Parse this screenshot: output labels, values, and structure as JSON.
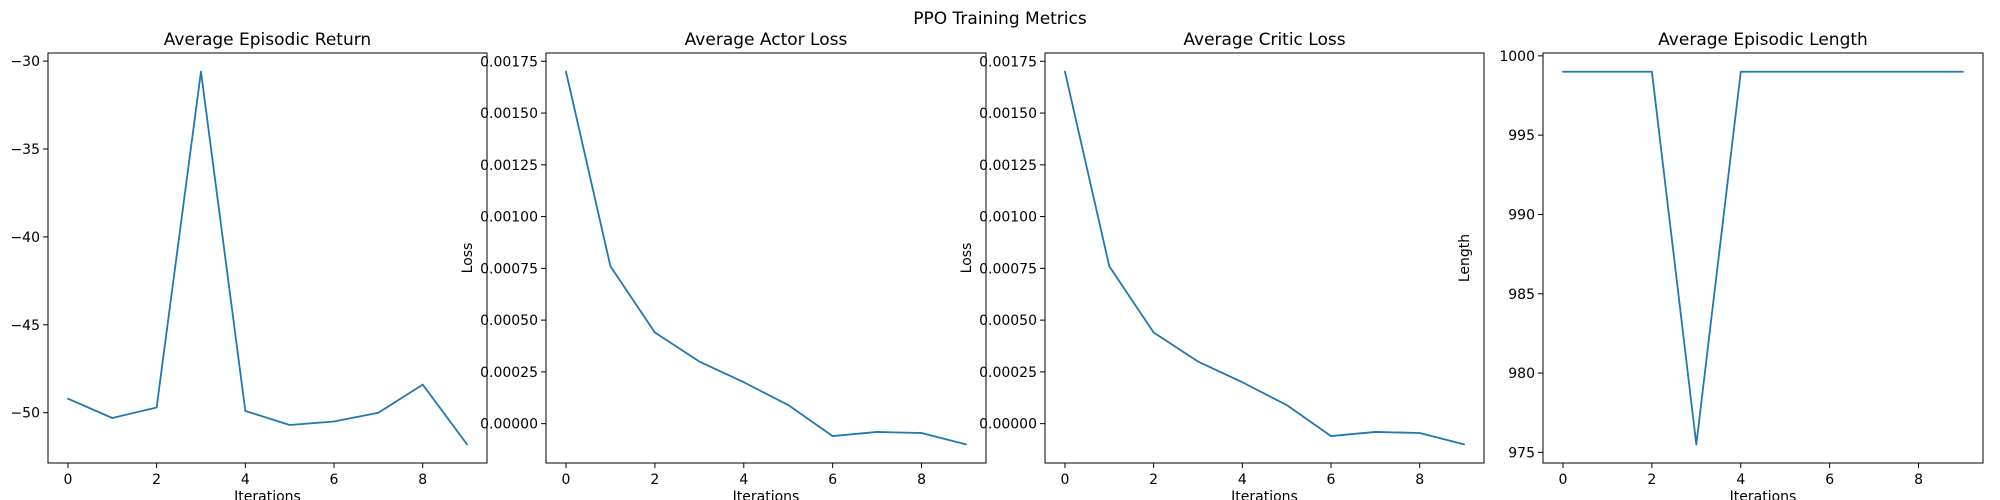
{
  "figure": {
    "suptitle": "PPO Training Metrics"
  },
  "line_color": "#1f77b4",
  "chart_data": [
    {
      "type": "line",
      "title": "Average Episodic Return",
      "xlabel": "Iterations",
      "ylabel": "",
      "x": [
        0,
        1,
        2,
        3,
        4,
        5,
        6,
        7,
        8,
        9
      ],
      "series": [
        {
          "values": [
            -49.2,
            -50.3,
            -49.7,
            -30.6,
            -49.9,
            -50.7,
            -50.5,
            -50.0,
            -48.4,
            -51.8
          ]
        }
      ],
      "xlim": [
        -0.45,
        9.45
      ],
      "ylim": [
        -52.86,
        -29.54
      ],
      "xticks": [
        0,
        2,
        4,
        6,
        8
      ],
      "xtick_labels": [
        "0",
        "2",
        "4",
        "6",
        "8"
      ],
      "yticks": [
        -50,
        -45,
        -40,
        -35,
        -30
      ],
      "ytick_labels": [
        "−50",
        "−45",
        "−40",
        "−35",
        "−30"
      ],
      "grid": false
    },
    {
      "type": "line",
      "title": "Average Actor Loss",
      "xlabel": "Iterations",
      "ylabel": "Loss",
      "x": [
        0,
        1,
        2,
        3,
        4,
        5,
        6,
        7,
        8,
        9
      ],
      "series": [
        {
          "values": [
            0.0017,
            0.00076,
            0.00044,
            0.0003,
            0.0002,
            9e-05,
            -6e-05,
            -4e-05,
            -4.5e-05,
            -0.0001
          ]
        }
      ],
      "xlim": [
        -0.45,
        9.45
      ],
      "ylim": [
        -0.00019,
        0.00179
      ],
      "xticks": [
        0,
        2,
        4,
        6,
        8
      ],
      "xtick_labels": [
        "0",
        "2",
        "4",
        "6",
        "8"
      ],
      "yticks": [
        0,
        0.00025,
        0.0005,
        0.00075,
        0.001,
        0.00125,
        0.0015,
        0.00175
      ],
      "ytick_labels": [
        "0.00000",
        "0.00025",
        "0.00050",
        "0.00075",
        "0.00100",
        "0.00125",
        "0.00150",
        "0.00175"
      ],
      "grid": false
    },
    {
      "type": "line",
      "title": "Average Critic Loss",
      "xlabel": "Iterations",
      "ylabel": "Loss",
      "x": [
        0,
        1,
        2,
        3,
        4,
        5,
        6,
        7,
        8,
        9
      ],
      "series": [
        {
          "values": [
            0.0017,
            0.00076,
            0.00044,
            0.0003,
            0.0002,
            9e-05,
            -6e-05,
            -4e-05,
            -4.5e-05,
            -0.0001
          ]
        }
      ],
      "xlim": [
        -0.45,
        9.45
      ],
      "ylim": [
        -0.00019,
        0.00179
      ],
      "xticks": [
        0,
        2,
        4,
        6,
        8
      ],
      "xtick_labels": [
        "0",
        "2",
        "4",
        "6",
        "8"
      ],
      "yticks": [
        0,
        0.00025,
        0.0005,
        0.00075,
        0.001,
        0.00125,
        0.0015,
        0.00175
      ],
      "ytick_labels": [
        "0.00000",
        "0.00025",
        "0.00050",
        "0.00075",
        "0.00100",
        "0.00125",
        "0.00150",
        "0.00175"
      ],
      "grid": false
    },
    {
      "type": "line",
      "title": "Average Episodic Length",
      "xlabel": "Iterations",
      "ylabel": "Length",
      "x": [
        0,
        1,
        2,
        3,
        4,
        5,
        6,
        7,
        8,
        9
      ],
      "series": [
        {
          "values": [
            999,
            999,
            999,
            975.5,
            999,
            999,
            999,
            999,
            999,
            999
          ]
        }
      ],
      "xlim": [
        -0.45,
        9.45
      ],
      "ylim": [
        974.33,
        1000.18
      ],
      "xticks": [
        0,
        2,
        4,
        6,
        8
      ],
      "xtick_labels": [
        "0",
        "2",
        "4",
        "6",
        "8"
      ],
      "yticks": [
        975,
        980,
        985,
        990,
        995,
        1000
      ],
      "ytick_labels": [
        "975",
        "980",
        "985",
        "990",
        "995",
        "1000"
      ],
      "grid": false
    }
  ]
}
